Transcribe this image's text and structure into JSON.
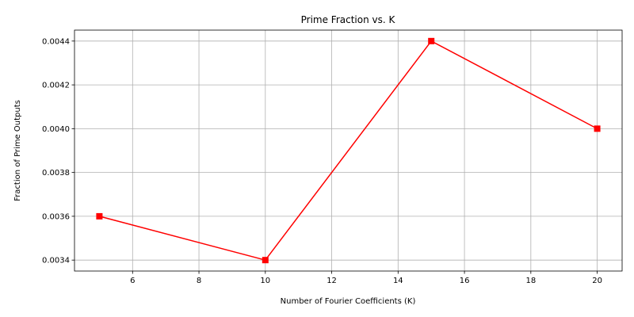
{
  "chart_data": {
    "type": "line",
    "title": "Prime Fraction vs. K",
    "xlabel": "Number of Fourier Coefficients (K)",
    "ylabel": "Fraction of Prime Outputs",
    "xlim": [
      4.25,
      20.75
    ],
    "ylim": [
      0.00335,
      0.00445
    ],
    "x_ticks": [
      6,
      8,
      10,
      12,
      14,
      16,
      18,
      20
    ],
    "x_tick_labels": [
      "6",
      "8",
      "10",
      "12",
      "14",
      "16",
      "18",
      "20"
    ],
    "y_ticks": [
      0.0034,
      0.0036,
      0.0038,
      0.004,
      0.0042,
      0.0044
    ],
    "y_tick_labels": [
      "0.0034",
      "0.0036",
      "0.0038",
      "0.0040",
      "0.0042",
      "0.0044"
    ],
    "grid": true,
    "legend": "none",
    "series": [
      {
        "x": [
          5,
          10,
          15,
          20
        ],
        "values": [
          0.0036,
          0.0034,
          0.0044,
          0.004
        ],
        "color": "#ff0000",
        "marker": "square"
      }
    ]
  }
}
